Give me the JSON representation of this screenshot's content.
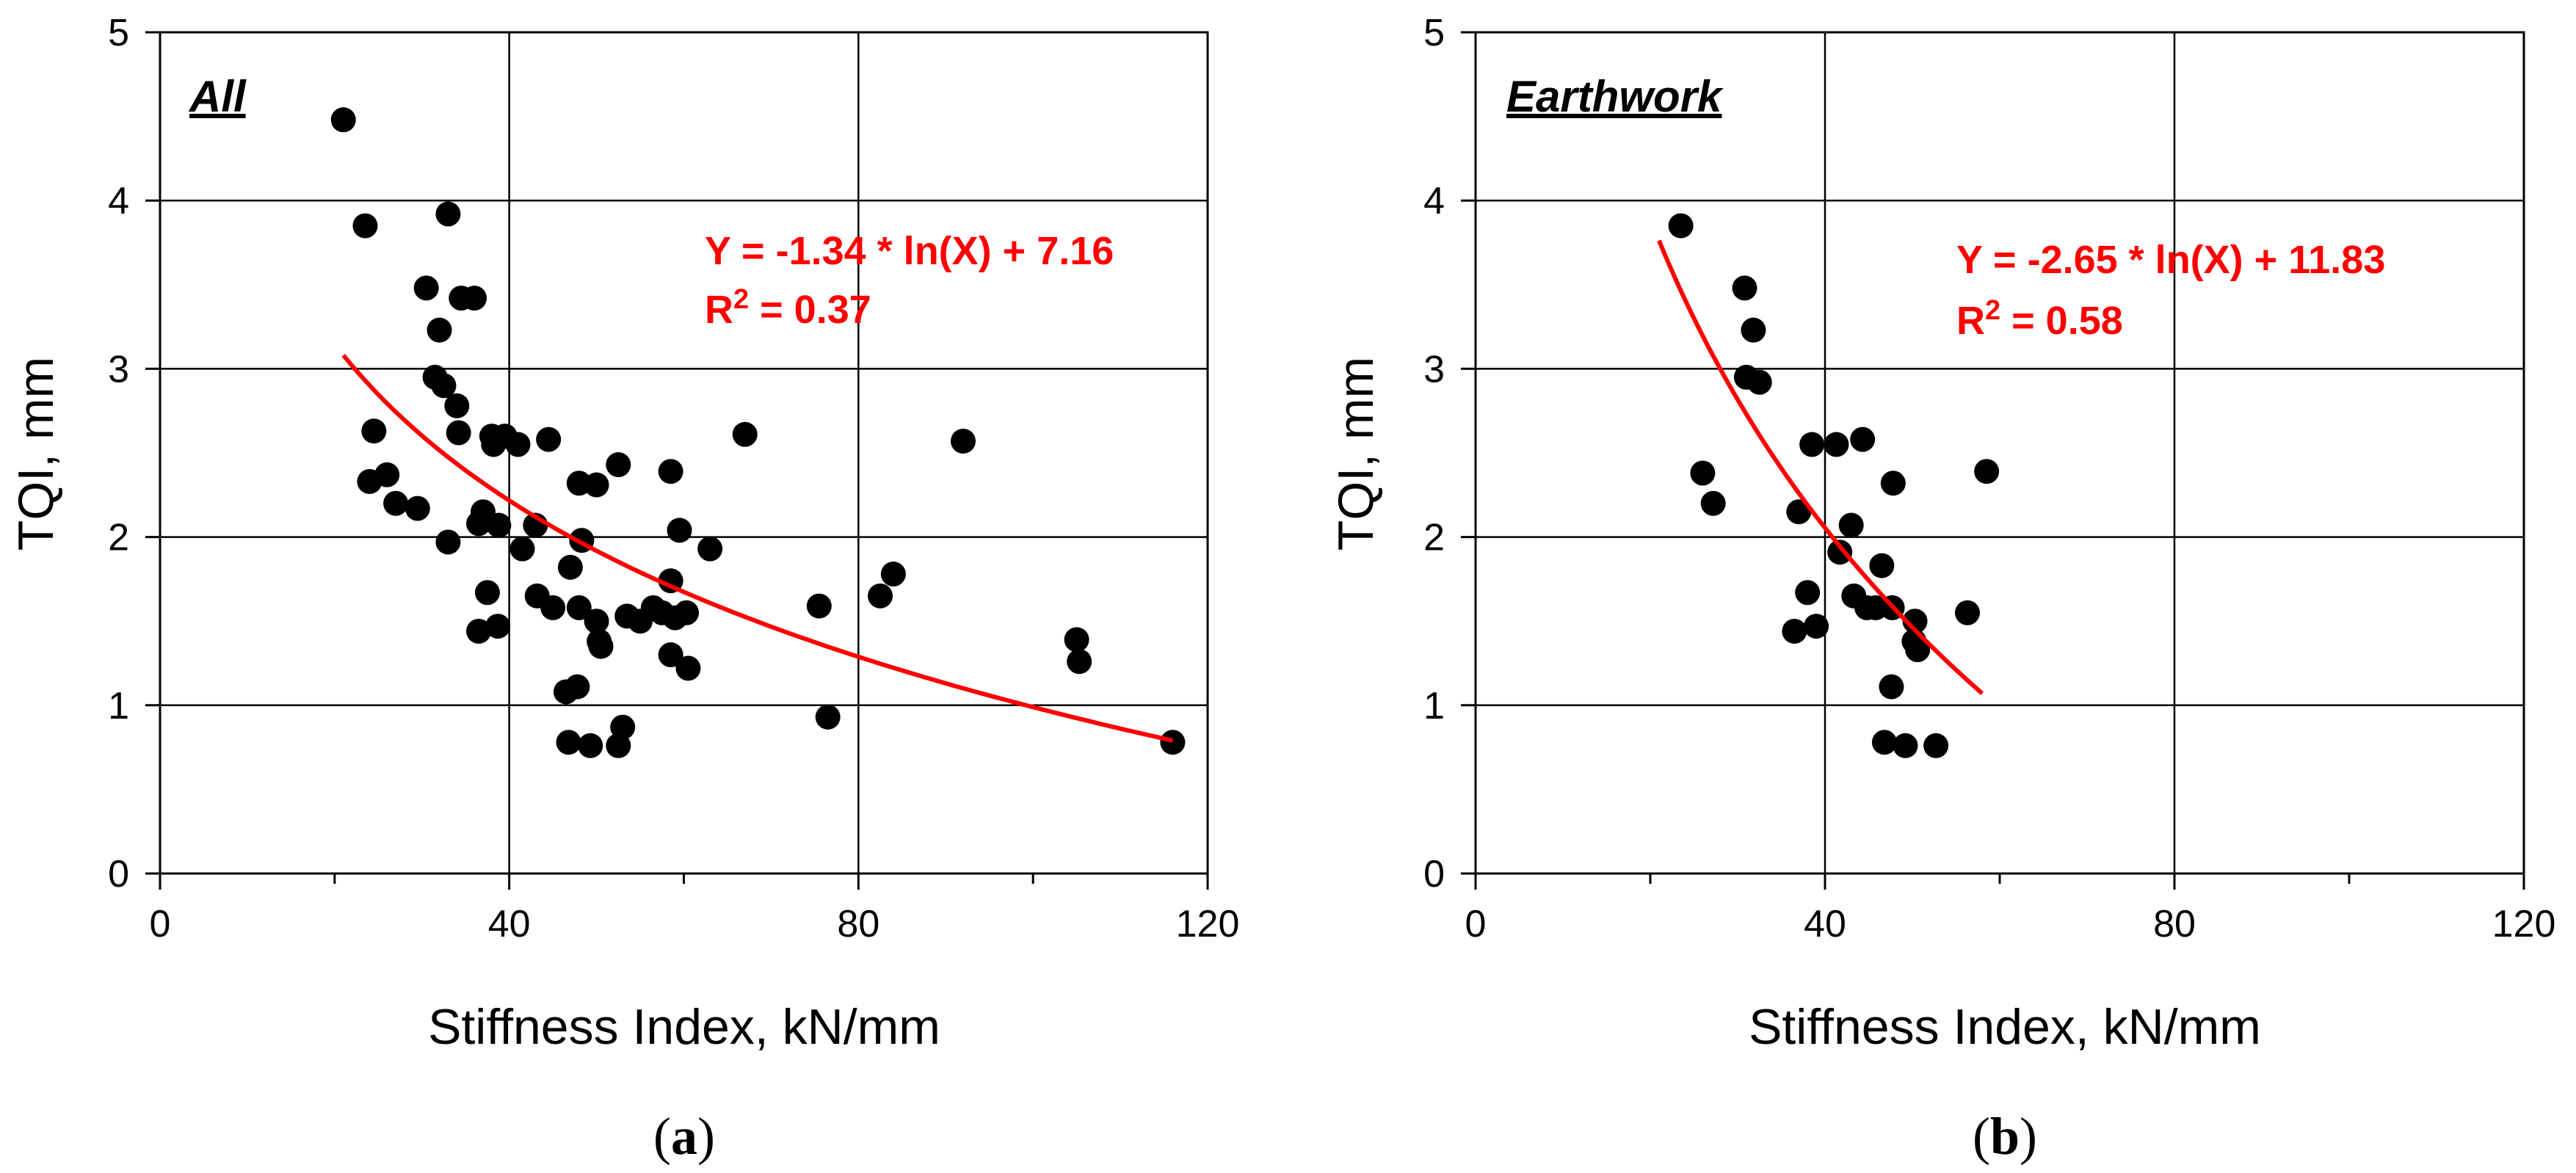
{
  "chart_data": [
    {
      "type": "scatter",
      "panel_title": "All",
      "caption_open": "(",
      "caption_letter": "a",
      "caption_close": ")",
      "xlabel": "Stiffness Index, kN/mm",
      "ylabel": "TQI, mm",
      "xlim": [
        0,
        120
      ],
      "ylim": [
        0,
        5
      ],
      "xticks": [
        0,
        40,
        80,
        120
      ],
      "yticks": [
        0,
        1,
        2,
        3,
        4,
        5
      ],
      "grid": true,
      "marker_color": "#000000",
      "fit": {
        "equation": "Y = -1.34 * ln(X) + 7.16",
        "r2_prefix": "R",
        "r2_exp": "2",
        "r2_suffix": " = 0.37",
        "a": -1.34,
        "b": 7.16,
        "x_range": [
          21,
          116
        ],
        "color": "#ff0000"
      },
      "points": [
        [
          21,
          4.48
        ],
        [
          23.5,
          3.85
        ],
        [
          33,
          3.92
        ],
        [
          30.5,
          3.48
        ],
        [
          34.5,
          3.42
        ],
        [
          36,
          3.42
        ],
        [
          32,
          3.23
        ],
        [
          31.5,
          2.95
        ],
        [
          32.5,
          2.9
        ],
        [
          34,
          2.78
        ],
        [
          34.2,
          2.62
        ],
        [
          38,
          2.6
        ],
        [
          39.5,
          2.6
        ],
        [
          38.2,
          2.55
        ],
        [
          41,
          2.55
        ],
        [
          44.5,
          2.58
        ],
        [
          52.5,
          2.43
        ],
        [
          58.5,
          2.39
        ],
        [
          48,
          2.32
        ],
        [
          50,
          2.31
        ],
        [
          24.5,
          2.63
        ],
        [
          24,
          2.33
        ],
        [
          26,
          2.37
        ],
        [
          27,
          2.2
        ],
        [
          29.5,
          2.17
        ],
        [
          37,
          2.15
        ],
        [
          36.5,
          2.08
        ],
        [
          38.8,
          2.07
        ],
        [
          43,
          2.07
        ],
        [
          67,
          2.61
        ],
        [
          92,
          2.57
        ],
        [
          33,
          1.97
        ],
        [
          41.5,
          1.93
        ],
        [
          48.3,
          1.98
        ],
        [
          59.5,
          2.04
        ],
        [
          63,
          1.93
        ],
        [
          47,
          1.82
        ],
        [
          58.5,
          1.74
        ],
        [
          37.5,
          1.67
        ],
        [
          43.2,
          1.65
        ],
        [
          45,
          1.58
        ],
        [
          48,
          1.58
        ],
        [
          53.5,
          1.53
        ],
        [
          55,
          1.5
        ],
        [
          56.5,
          1.58
        ],
        [
          57.5,
          1.55
        ],
        [
          59,
          1.52
        ],
        [
          60.3,
          1.55
        ],
        [
          50,
          1.5
        ],
        [
          75.5,
          1.59
        ],
        [
          82.5,
          1.65
        ],
        [
          84,
          1.78
        ],
        [
          36.5,
          1.44
        ],
        [
          38.7,
          1.47
        ],
        [
          50.5,
          1.35
        ],
        [
          50.3,
          1.38
        ],
        [
          58.5,
          1.3
        ],
        [
          60.5,
          1.22
        ],
        [
          105,
          1.39
        ],
        [
          105.3,
          1.26
        ],
        [
          46.5,
          1.08
        ],
        [
          47.8,
          1.11
        ],
        [
          53,
          0.87
        ],
        [
          46.8,
          0.78
        ],
        [
          49.3,
          0.76
        ],
        [
          52.5,
          0.76
        ],
        [
          76.5,
          0.93
        ],
        [
          116,
          0.78
        ]
      ]
    },
    {
      "type": "scatter",
      "panel_title": "Earthwork",
      "caption_open": "(",
      "caption_letter": "b",
      "caption_close": ")",
      "xlabel": "Stiffness Index, kN/mm",
      "ylabel": "TQI, mm",
      "xlim": [
        0,
        120
      ],
      "ylim": [
        0,
        5
      ],
      "xticks": [
        0,
        40,
        80,
        120
      ],
      "yticks": [
        0,
        1,
        2,
        3,
        4,
        5
      ],
      "grid": true,
      "marker_color": "#000000",
      "fit": {
        "equation": "Y = -2.65 * ln(X) + 11.83",
        "r2_prefix": "R",
        "r2_exp": "2",
        "r2_suffix": " = 0.58",
        "a": -2.65,
        "b": 11.83,
        "x_range": [
          21,
          58
        ],
        "color": "#ff0000"
      },
      "points": [
        [
          23.5,
          3.85
        ],
        [
          30.8,
          3.48
        ],
        [
          31.8,
          3.23
        ],
        [
          31,
          2.95
        ],
        [
          32.5,
          2.92
        ],
        [
          26,
          2.38
        ],
        [
          27.2,
          2.2
        ],
        [
          38.5,
          2.55
        ],
        [
          41.3,
          2.55
        ],
        [
          44.3,
          2.58
        ],
        [
          47.8,
          2.32
        ],
        [
          58.5,
          2.39
        ],
        [
          37,
          2.15
        ],
        [
          43,
          2.07
        ],
        [
          41.7,
          1.91
        ],
        [
          46.5,
          1.83
        ],
        [
          38,
          1.67
        ],
        [
          43.3,
          1.65
        ],
        [
          44.8,
          1.58
        ],
        [
          45.8,
          1.58
        ],
        [
          47.7,
          1.58
        ],
        [
          50.3,
          1.5
        ],
        [
          56.3,
          1.55
        ],
        [
          36.5,
          1.44
        ],
        [
          39,
          1.47
        ],
        [
          50.2,
          1.38
        ],
        [
          50.6,
          1.33
        ],
        [
          47.6,
          1.11
        ],
        [
          46.8,
          0.78
        ],
        [
          49.2,
          0.76
        ],
        [
          52.7,
          0.76
        ]
      ]
    }
  ]
}
